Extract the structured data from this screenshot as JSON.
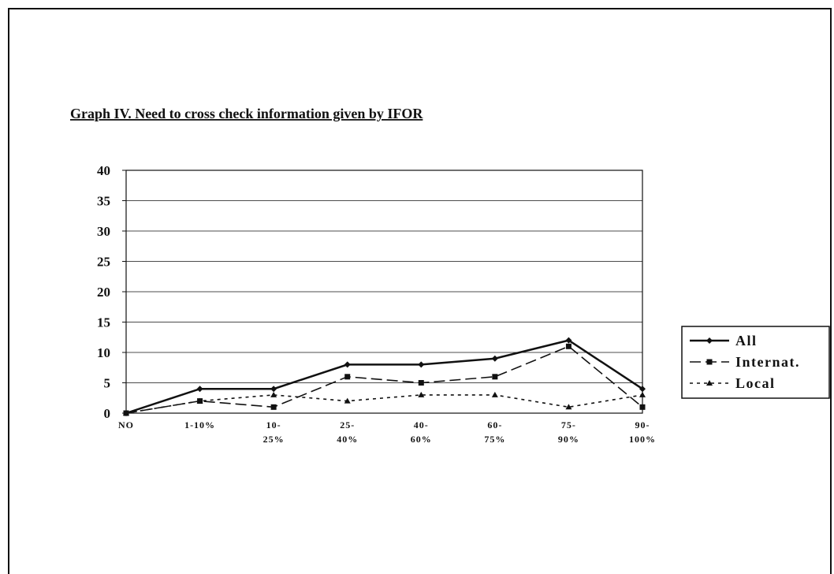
{
  "chart_data": {
    "type": "line",
    "title": "Graph IV. Need to cross check information given by IFOR",
    "categories": [
      [
        "NO"
      ],
      [
        "1-10%"
      ],
      [
        "10-",
        "25%"
      ],
      [
        "25-",
        "40%"
      ],
      [
        "40-",
        "60%"
      ],
      [
        "60-",
        "75%"
      ],
      [
        "75-",
        "90%"
      ],
      [
        "90-",
        "100%"
      ]
    ],
    "series": [
      {
        "name": "All",
        "color": "#111111",
        "dash": "none",
        "marker": "diamond",
        "values": [
          0,
          4,
          4,
          8,
          8,
          9,
          12,
          4
        ]
      },
      {
        "name": "Internat.",
        "color": "#111111",
        "dash": "14,6",
        "marker": "square",
        "values": [
          0,
          2,
          1,
          6,
          5,
          6,
          11,
          1
        ]
      },
      {
        "name": "Local",
        "color": "#111111",
        "dash": "4,5",
        "marker": "triangle",
        "values": [
          0,
          2,
          3,
          2,
          3,
          3,
          1,
          3
        ]
      }
    ],
    "ylim": [
      0,
      40
    ],
    "yticks": [
      0,
      5,
      10,
      15,
      20,
      25,
      30,
      35,
      40
    ],
    "grid": true,
    "legend": "right"
  }
}
